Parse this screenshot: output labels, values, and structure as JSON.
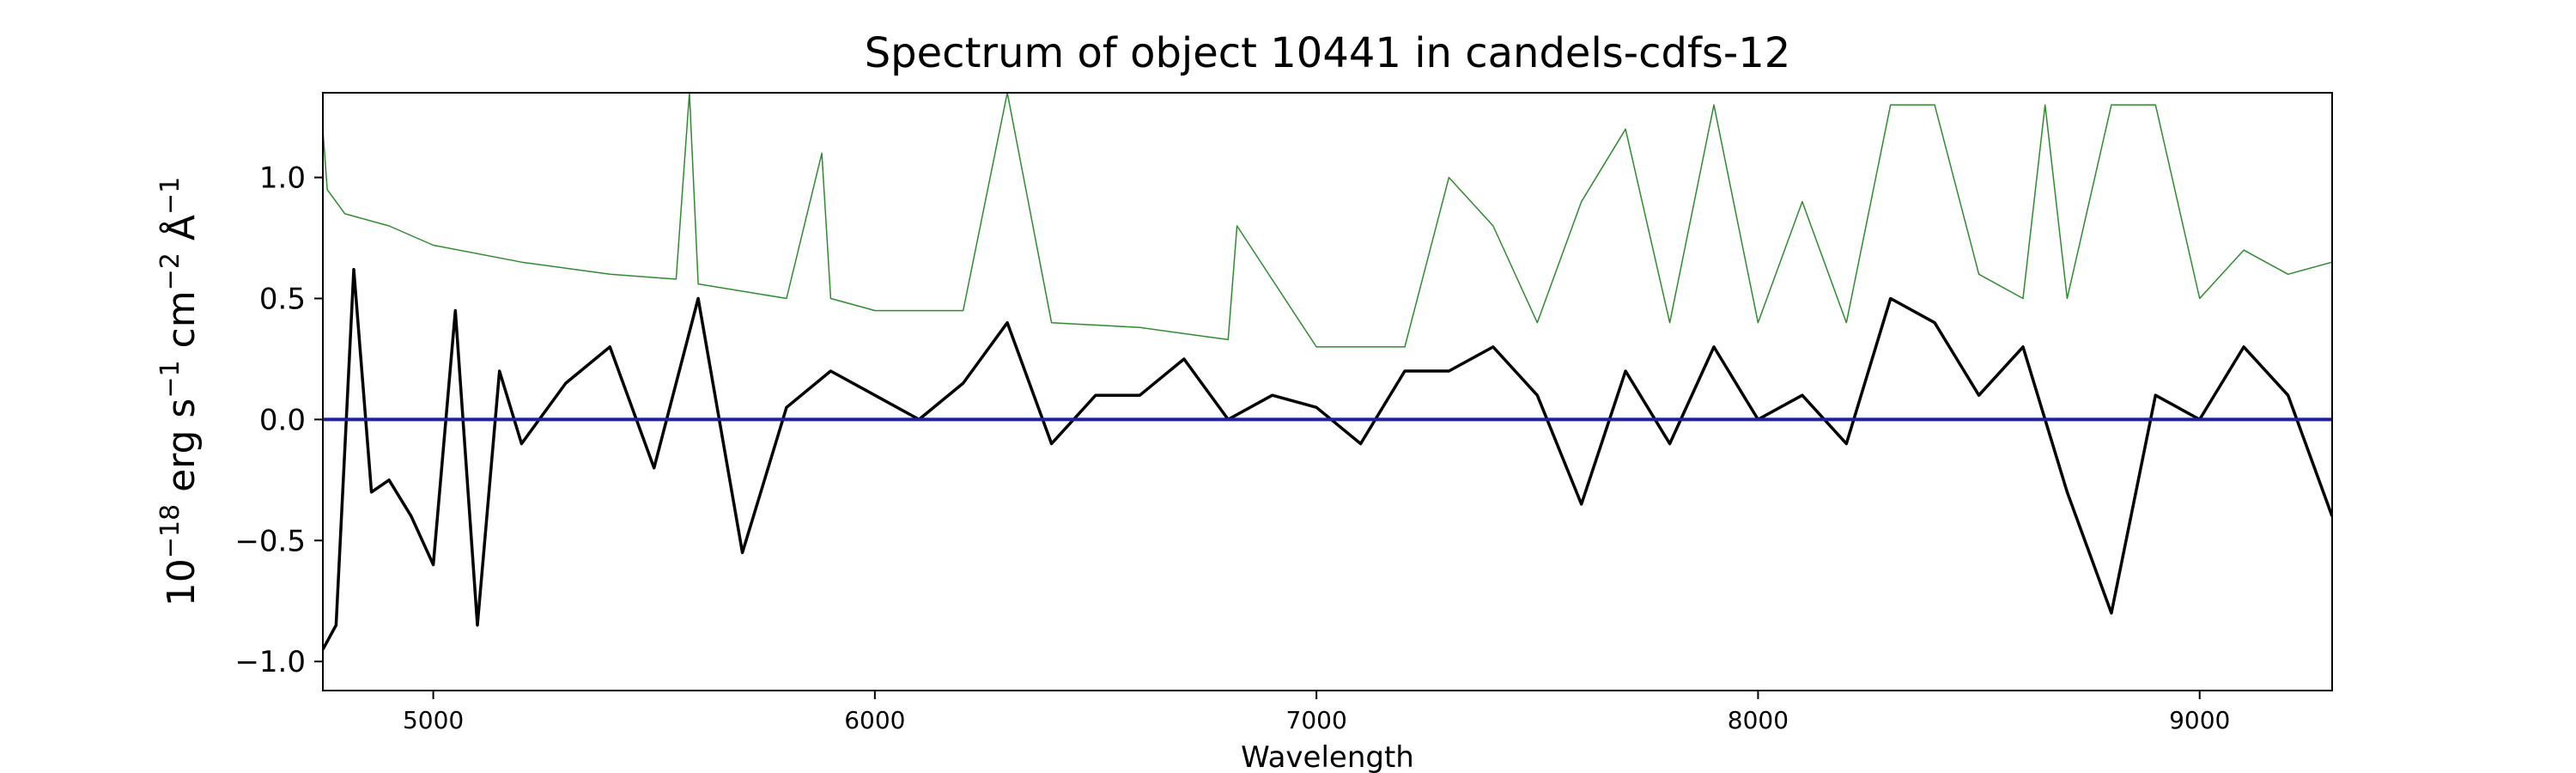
{
  "chart_data": {
    "type": "line",
    "title": "Spectrum of object 10441 in candels-cdfs-12",
    "xlabel": "Wavelength",
    "ylabel_base": "10",
    "ylabel_exp": "−18",
    "ylabel_unit": "erg s",
    "ylabel_exp_s": "−1",
    "ylabel_unit_cm": "cm",
    "ylabel_exp_cm": "−2",
    "ylabel_unit_A": "Å",
    "ylabel_exp_A": "−1",
    "xlim": [
      4750,
      9300
    ],
    "ylim": [
      -1.12,
      1.35
    ],
    "x_ticks": [
      5000,
      6000,
      7000,
      8000,
      9000
    ],
    "x_tick_labels": [
      "5000",
      "6000",
      "7000",
      "8000",
      "9000"
    ],
    "y_ticks": [
      -1.0,
      -0.5,
      0.0,
      0.5,
      1.0
    ],
    "y_tick_labels": [
      "−1.0",
      "−0.5",
      "0.0",
      "0.5",
      "1.0"
    ],
    "grid": false,
    "colors": {
      "flux": "#000000",
      "error": "#2e8b2e",
      "zero": "#1f1fa0"
    },
    "series": [
      {
        "key": "flux",
        "x": [
          4750,
          4780,
          4820,
          4860,
          4900,
          4950,
          5000,
          5050,
          5100,
          5150,
          5200,
          5300,
          5400,
          5500,
          5600,
          5700,
          5800,
          5900,
          6000,
          6100,
          6200,
          6300,
          6400,
          6500,
          6600,
          6700,
          6800,
          6900,
          7000,
          7100,
          7200,
          7300,
          7400,
          7500,
          7600,
          7700,
          7800,
          7900,
          8000,
          8100,
          8200,
          8300,
          8400,
          8500,
          8600,
          8700,
          8800,
          8900,
          9000,
          9100,
          9200,
          9300
        ],
        "y": [
          -0.95,
          -0.85,
          0.62,
          -0.3,
          -0.25,
          -0.4,
          -0.6,
          0.45,
          -0.85,
          0.2,
          -0.1,
          0.15,
          0.3,
          -0.2,
          0.5,
          -0.55,
          0.05,
          0.2,
          0.1,
          0.0,
          0.15,
          0.4,
          -0.1,
          0.1,
          0.1,
          0.25,
          0.0,
          0.1,
          0.05,
          -0.1,
          0.2,
          0.2,
          0.3,
          0.1,
          -0.35,
          0.2,
          -0.1,
          0.3,
          0.0,
          0.1,
          -0.1,
          0.5,
          0.4,
          0.1,
          0.3,
          -0.3,
          -0.8,
          0.1,
          0.0,
          0.3,
          0.1,
          -0.4
        ]
      },
      {
        "key": "error",
        "x": [
          4750,
          4760,
          4800,
          4900,
          5000,
          5200,
          5400,
          5550,
          5580,
          5600,
          5800,
          5880,
          5900,
          6000,
          6200,
          6300,
          6400,
          6600,
          6800,
          6820,
          7000,
          7200,
          7300,
          7400,
          7500,
          7600,
          7700,
          7800,
          7900,
          8000,
          8100,
          8200,
          8300,
          8400,
          8500,
          8600,
          8650,
          8700,
          8800,
          8900,
          9000,
          9100,
          9200,
          9300
        ],
        "y": [
          1.2,
          0.95,
          0.85,
          0.8,
          0.72,
          0.65,
          0.6,
          0.58,
          1.35,
          0.56,
          0.5,
          1.1,
          0.5,
          0.45,
          0.45,
          1.35,
          0.4,
          0.38,
          0.33,
          0.8,
          0.3,
          0.3,
          1.0,
          0.8,
          0.4,
          0.9,
          1.2,
          0.4,
          1.3,
          0.4,
          0.9,
          0.4,
          1.3,
          1.3,
          0.6,
          0.5,
          1.3,
          0.5,
          1.3,
          1.3,
          0.5,
          0.7,
          0.6,
          0.65
        ]
      },
      {
        "key": "zero",
        "x": [
          4750,
          9300
        ],
        "y": [
          0.0,
          0.0
        ]
      }
    ]
  }
}
